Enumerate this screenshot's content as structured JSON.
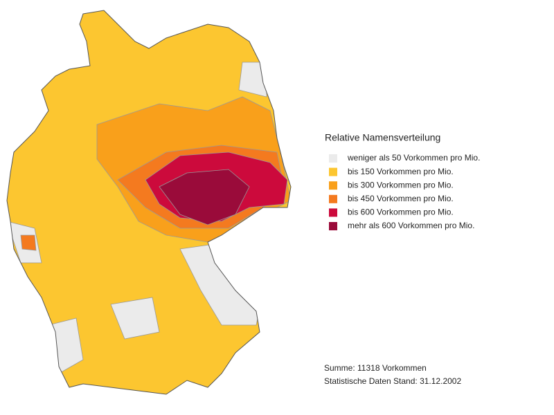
{
  "legend": {
    "title": "Relative Namensverteilung",
    "items": [
      {
        "label": "weniger als 50 Vorkommen pro Mio.",
        "color": "#ebebeb"
      },
      {
        "label": "bis 150 Vorkommen pro Mio.",
        "color": "#fcc630"
      },
      {
        "label": "bis 300 Vorkommen pro Mio.",
        "color": "#f9a01b"
      },
      {
        "label": "bis 450 Vorkommen pro Mio.",
        "color": "#f47a1f"
      },
      {
        "label": "bis 600 Vorkommen pro Mio.",
        "color": "#cc0a3c"
      },
      {
        "label": "mehr als 600 Vorkommen pro Mio.",
        "color": "#9a0b3a"
      }
    ]
  },
  "footer": [
    "Summe: 11318 Vorkommen",
    "Statistische Daten Stand: 31.12.2002"
  ]
}
